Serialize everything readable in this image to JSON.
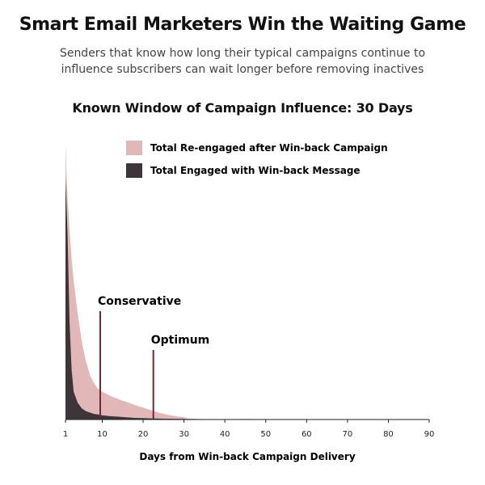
{
  "header": {
    "title": "Smart Email Marketers Win the Waiting Game",
    "subtitle": "Senders that know how long their typical campaigns continue to influence subscribers can wait longer before removing inactives"
  },
  "colors": {
    "reengaged": "#e1b8b7",
    "engaged": "#3d3539",
    "marker": "#6b2a35",
    "axis": "#222222"
  },
  "chart_data": {
    "type": "area",
    "title": "Known Window of Campaign Influence: 30 Days",
    "xlabel": "Days from Win-back Campaign Delivery",
    "ylabel": "",
    "xlim": [
      1,
      90
    ],
    "ylim": [
      0,
      100
    ],
    "xticks": [
      1,
      10,
      20,
      30,
      40,
      50,
      60,
      70,
      80,
      90
    ],
    "legend_position": "top",
    "series": [
      {
        "name": "Total Re-engaged after Win-back Campaign",
        "x": [
          1,
          1.2,
          1.5,
          2,
          2.5,
          3,
          4,
          5,
          6,
          7,
          8,
          9,
          10,
          12,
          14,
          16,
          18,
          20,
          22,
          24,
          26,
          28,
          30,
          31,
          35,
          45,
          60,
          90
        ],
        "values": [
          100,
          90,
          80,
          68,
          58,
          50,
          38,
          28,
          21,
          16,
          13,
          11,
          10,
          8.5,
          7.3,
          6.3,
          5.2,
          4.3,
          3.3,
          2.4,
          1.7,
          1.2,
          0.8,
          0.3,
          0.1,
          0.2,
          0.1,
          0.1
        ]
      },
      {
        "name": "Total Engaged with Win-back Message",
        "x": [
          1,
          1.2,
          1.5,
          2,
          2.5,
          3,
          4,
          5,
          6,
          7,
          8,
          9,
          10,
          12,
          14,
          16,
          18,
          20,
          22,
          25,
          30,
          40,
          60,
          90
        ],
        "values": [
          87,
          79,
          67,
          35,
          18,
          10,
          6,
          4,
          3,
          2.5,
          2,
          1.8,
          1.5,
          1.2,
          1,
          0.8,
          0.6,
          0.5,
          0.4,
          0.3,
          0.2,
          0.1,
          0.05,
          0.05
        ]
      }
    ],
    "annotations": [
      {
        "label": "Conservative",
        "x": 9.5,
        "y": 39
      },
      {
        "label": "Optimum",
        "x": 22.5,
        "y": 25
      }
    ]
  }
}
